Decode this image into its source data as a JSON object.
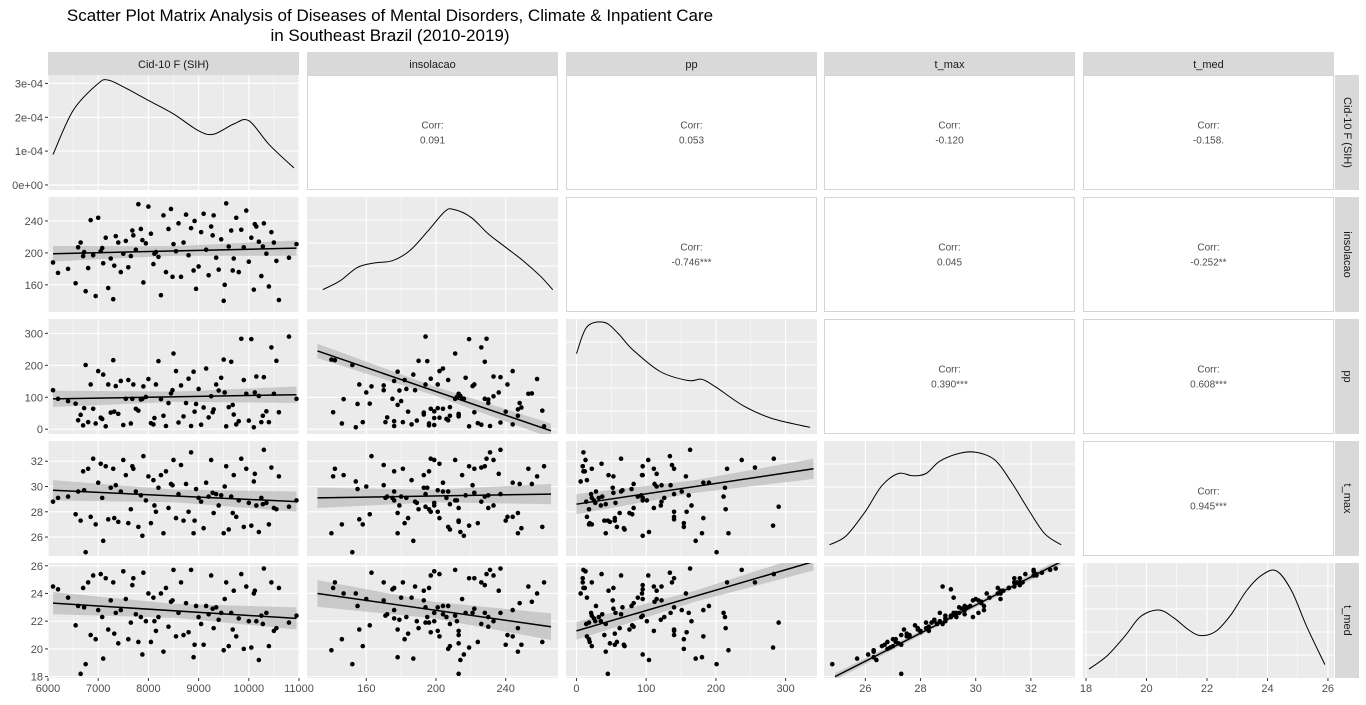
{
  "title": {
    "line1": "Scatter Plot Matrix Analysis of Diseases of Mental Disorders, Climate & Inpatient Care",
    "line2": "in Southeast Brazil (2010-2019)"
  },
  "colors": {
    "panel_bg": "#ebebeb",
    "grid": "#ffffff",
    "strip_bg": "#d9d9d9",
    "point": "#000000",
    "band": "#bdbdbd",
    "text": "#4d4d4d"
  },
  "chart_data": {
    "type": "scatter",
    "variables": [
      "Cid-10 F (SIH)",
      "insolacao",
      "pp",
      "t_max",
      "t_med"
    ],
    "axes": {
      "Cid-10 F (SIH)": {
        "range": [
          6000,
          11000
        ],
        "ticks": [
          6000,
          7000,
          8000,
          9000,
          10000,
          11000
        ],
        "labels": [
          "6000",
          "7000",
          "8000",
          "9000",
          "10000",
          "11000"
        ]
      },
      "insolacao": {
        "range": [
          126,
          270
        ],
        "ticks": [
          160,
          200,
          240
        ],
        "labels": [
          "160",
          "200",
          "240"
        ]
      },
      "pp": {
        "range": [
          -15,
          345
        ],
        "ticks": [
          0,
          100,
          200,
          300
        ],
        "labels": [
          "0",
          "100",
          "200",
          "300"
        ]
      },
      "t_max": {
        "range": [
          24.5,
          33.6
        ],
        "ticks": [
          26,
          28,
          30,
          32
        ],
        "labels": [
          "26",
          "28",
          "30",
          "32"
        ]
      },
      "t_med": {
        "range": [
          17.9,
          26.2
        ],
        "ticks": [
          18,
          20,
          22,
          24,
          26
        ],
        "labels": [
          "18",
          "20",
          "22",
          "24",
          "26"
        ]
      }
    },
    "density_axis": {
      "range": [
        -1.5e-05,
        0.000325
      ],
      "ticks": [
        0,
        0.0001,
        0.0002,
        0.0003
      ],
      "labels": [
        "0e+00",
        "1e-04",
        "2e-04",
        "3e-04"
      ]
    },
    "correlations": [
      {
        "row": 0,
        "col": 1,
        "label": "Corr:",
        "value": "0.091"
      },
      {
        "row": 0,
        "col": 2,
        "label": "Corr:",
        "value": "0.053"
      },
      {
        "row": 0,
        "col": 3,
        "label": "Corr:",
        "value": "-0.120"
      },
      {
        "row": 0,
        "col": 4,
        "label": "Corr:",
        "value": "-0.158."
      },
      {
        "row": 1,
        "col": 2,
        "label": "Corr:",
        "value": "-0.746***"
      },
      {
        "row": 1,
        "col": 3,
        "label": "Corr:",
        "value": "0.045"
      },
      {
        "row": 1,
        "col": 4,
        "label": "Corr:",
        "value": "-0.252**"
      },
      {
        "row": 2,
        "col": 3,
        "label": "Corr:",
        "value": "0.390***"
      },
      {
        "row": 2,
        "col": 4,
        "label": "Corr:",
        "value": "0.608***"
      },
      {
        "row": 3,
        "col": 4,
        "label": "Corr:",
        "value": "0.945***"
      }
    ],
    "densities": [
      {
        "var": "Cid-10 F (SIH)",
        "x": [
          6100,
          6500,
          7000,
          7200,
          7500,
          8000,
          8500,
          9000,
          9300,
          9700,
          10000,
          10400,
          10900
        ],
        "y": [
          9e-05,
          0.00022,
          0.0003,
          0.00031,
          0.00029,
          0.00025,
          0.00021,
          0.00016,
          0.00015,
          0.00018,
          0.00019,
          0.00012,
          5e-05
        ]
      },
      {
        "var": "insolacao",
        "x": [
          135,
          145,
          155,
          165,
          175,
          185,
          195,
          205,
          210,
          220,
          230,
          240,
          250,
          260,
          267
        ],
        "y": [
          0.2,
          0.28,
          0.4,
          0.44,
          0.46,
          0.55,
          0.72,
          0.9,
          0.92,
          0.85,
          0.7,
          0.58,
          0.46,
          0.32,
          0.2
        ]
      },
      {
        "var": "pp",
        "x": [
          0,
          15,
          40,
          60,
          80,
          120,
          160,
          180,
          200,
          240,
          280,
          320,
          335
        ],
        "y": [
          0.72,
          0.96,
          1.0,
          0.9,
          0.76,
          0.56,
          0.48,
          0.49,
          0.42,
          0.25,
          0.14,
          0.08,
          0.06
        ]
      },
      {
        "var": "t_max",
        "x": [
          24.7,
          25.3,
          26.0,
          26.6,
          27.2,
          27.7,
          28.2,
          28.7,
          29.4,
          30.0,
          30.7,
          31.3,
          31.9,
          32.5,
          33.1
        ],
        "y": [
          0.1,
          0.18,
          0.4,
          0.63,
          0.74,
          0.72,
          0.74,
          0.85,
          0.92,
          0.93,
          0.86,
          0.66,
          0.42,
          0.2,
          0.1
        ]
      },
      {
        "var": "t_med",
        "x": [
          18.1,
          18.7,
          19.3,
          19.8,
          20.4,
          20.9,
          21.4,
          21.8,
          22.3,
          22.8,
          23.3,
          23.8,
          24.3,
          24.8,
          25.3,
          25.9
        ],
        "y": [
          0.08,
          0.2,
          0.38,
          0.55,
          0.61,
          0.54,
          0.43,
          0.38,
          0.42,
          0.57,
          0.78,
          0.92,
          0.96,
          0.78,
          0.46,
          0.12
        ]
      }
    ],
    "fits": [
      {
        "row": 1,
        "col": 0,
        "x": [
          6100,
          10950
        ],
        "y": [
          199,
          206
        ],
        "band": 6
      },
      {
        "row": 2,
        "col": 0,
        "x": [
          6100,
          10950
        ],
        "y": [
          95,
          108
        ],
        "band": 16
      },
      {
        "row": 2,
        "col": 1,
        "x": [
          132,
          266
        ],
        "y": [
          245,
          -5
        ],
        "band": 14
      },
      {
        "row": 3,
        "col": 0,
        "x": [
          6100,
          10950
        ],
        "y": [
          29.7,
          28.8
        ],
        "band": 0.5
      },
      {
        "row": 3,
        "col": 1,
        "x": [
          132,
          266
        ],
        "y": [
          29.1,
          29.4
        ],
        "band": 0.5
      },
      {
        "row": 3,
        "col": 2,
        "x": [
          0,
          340
        ],
        "y": [
          28.6,
          31.4
        ],
        "band": 0.5
      },
      {
        "row": 4,
        "col": 0,
        "x": [
          6100,
          10950
        ],
        "y": [
          23.3,
          22.2
        ],
        "band": 0.5
      },
      {
        "row": 4,
        "col": 1,
        "x": [
          132,
          266
        ],
        "y": [
          24.0,
          21.6
        ],
        "band": 0.6
      },
      {
        "row": 4,
        "col": 2,
        "x": [
          0,
          340
        ],
        "y": [
          21.3,
          26.3
        ],
        "band": 0.4
      },
      {
        "row": 4,
        "col": 3,
        "x": [
          24.9,
          33.1
        ],
        "y": [
          18.0,
          26.3
        ],
        "band": 0.15
      }
    ],
    "observations": {
      "Cid-10 F (SIH)": [
        6100,
        6200,
        6400,
        6550,
        6600,
        6650,
        6700,
        6750,
        6800,
        6850,
        6900,
        6950,
        7000,
        7050,
        7100,
        7150,
        7200,
        7250,
        7300,
        7350,
        7400,
        7450,
        7500,
        7550,
        7600,
        7650,
        7700,
        7750,
        7800,
        7850,
        7900,
        7950,
        8000,
        8050,
        8100,
        8150,
        8200,
        8250,
        8300,
        8350,
        8400,
        8450,
        8500,
        8550,
        8600,
        8650,
        8700,
        8750,
        8800,
        8850,
        8900,
        8950,
        9000,
        9050,
        9100,
        9150,
        9200,
        9250,
        9300,
        9350,
        9400,
        9450,
        9500,
        9550,
        9600,
        9650,
        9700,
        9750,
        9800,
        9850,
        9900,
        9950,
        10000,
        10050,
        10100,
        10150,
        10200,
        10250,
        10300,
        10350,
        10400,
        10450,
        10500,
        10600,
        10800,
        10950,
        7080,
        7320,
        7680,
        8120,
        8480,
        8920,
        9280,
        9680,
        10120,
        10550,
        6720,
        7880,
        9520,
        10280
      ],
      "insolacao": [
        188,
        175,
        180,
        162,
        207,
        213,
        196,
        152,
        181,
        241,
        197,
        146,
        244,
        202,
        187,
        219,
        156,
        193,
        142,
        221,
        213,
        176,
        199,
        215,
        182,
        196,
        222,
        204,
        261,
        230,
        163,
        212,
        258,
        224,
        186,
        201,
        195,
        147,
        247,
        176,
        230,
        255,
        211,
        202,
        237,
        170,
        213,
        248,
        197,
        231,
        178,
        155,
        183,
        226,
        249,
        204,
        172,
        233,
        247,
        194,
        179,
        217,
        140,
        262,
        208,
        228,
        193,
        244,
        176,
        229,
        207,
        253,
        189,
        219,
        154,
        233,
        214,
        171,
        237,
        199,
        158,
        226,
        213,
        141,
        194,
        211,
        206,
        184,
        228,
        199,
        170,
        240,
        222,
        178,
        236,
        190,
        201,
        216,
        160,
        208
      ],
      "pp": [
        122,
        95,
        88,
        80,
        28,
        45,
        12,
        201,
        22,
        140,
        64,
        18,
        182,
        36,
        171,
        9,
        140,
        52,
        216,
        135,
        48,
        151,
        13,
        95,
        154,
        18,
        140,
        64,
        58,
        93,
        134,
        101,
        157,
        19,
        15,
        140,
        213,
        94,
        42,
        10,
        82,
        112,
        237,
        182,
        21,
        137,
        40,
        82,
        158,
        10,
        180,
        79,
        126,
        14,
        68,
        190,
        37,
        103,
        62,
        140,
        121,
        161,
        218,
        9,
        69,
        211,
        46,
        15,
        25,
        283,
        154,
        111,
        27,
        282,
        6,
        165,
        104,
        22,
        163,
        56,
        22,
        256,
        111,
        53,
        290,
        95,
        32,
        55,
        95,
        35,
        122,
        55,
        53,
        76,
        115,
        214,
        66,
        95,
        115,
        42
      ],
      "t_max": [
        28.8,
        29.1,
        29.2,
        27.8,
        29.6,
        27.3,
        31.2,
        24.8,
        31.4,
        27.6,
        32.2,
        27.0,
        30.3,
        31.8,
        25.7,
        31.6,
        27.4,
        29.9,
        31.4,
        30.1,
        27.2,
        29.6,
        32.1,
        30.9,
        27.1,
        28.2,
        31.4,
        29.6,
        26.8,
        29.3,
        32.4,
        28.9,
        30.8,
        27.1,
        30.5,
        28.0,
        29.9,
        30.9,
        26.3,
        31.2,
        28.3,
        30.2,
        32.1,
        27.5,
        29.4,
        31.7,
        27.3,
        30.2,
        28.0,
        32.7,
        26.3,
        29.8,
        29.1,
        28.8,
        26.7,
        30.3,
        29.2,
        32.1,
        27.9,
        29.4,
        28.5,
        29.3,
        26.3,
        31.6,
        26.6,
        29.2,
        30.9,
        27.6,
        28.9,
        32.2,
        26.8,
        31.4,
        28.7,
        26.9,
        30.4,
        28.5,
        26.4,
        29.1,
        32.9,
        28.7,
        27.0,
        31.5,
        28.3,
        30.8,
        28.4,
        28.9,
        29.1,
        27.5,
        31.6,
        28.5,
        30.1,
        27.3,
        29.5,
        27.9,
        31.0,
        28.2,
        29.7,
        26.1,
        30.0,
        28.6
      ],
      "t_med": [
        24.5,
        24.3,
        23.7,
        21.7,
        23.1,
        18.2,
        24.4,
        18.9,
        24.8,
        21.0,
        25.3,
        20.7,
        22.8,
        25.4,
        19.3,
        25.1,
        21.4,
        23.5,
        24.8,
        22.6,
        20.4,
        22.8,
        25.6,
        23.6,
        20.7,
        21.9,
        25.1,
        22.5,
        20.5,
        22.3,
        25.5,
        22.0,
        24.0,
        20.5,
        23.7,
        21.3,
        22.3,
        24.0,
        19.8,
        24.4,
        21.6,
        23.4,
        25.7,
        20.9,
        22.6,
        24.8,
        21.0,
        23.3,
        21.2,
        25.7,
        19.4,
        23.1,
        22.3,
        21.8,
        20.3,
        23.1,
        22.5,
        25.3,
        21.5,
        23.0,
        22.1,
        22.6,
        19.9,
        24.8,
        20.2,
        22.6,
        24.2,
        20.9,
        22.2,
        25.4,
        20.0,
        24.5,
        22.0,
        20.1,
        24.0,
        22.0,
        19.2,
        22.4,
        25.8,
        22.6,
        20.2,
        24.8,
        21.3,
        24.4,
        21.9,
        22.4,
        22.3,
        21.1,
        24.6,
        22.0,
        23.5,
        20.3,
        22.9,
        21.4,
        24.2,
        21.5,
        23.0,
        19.6,
        23.6,
        21.8
      ]
    }
  }
}
